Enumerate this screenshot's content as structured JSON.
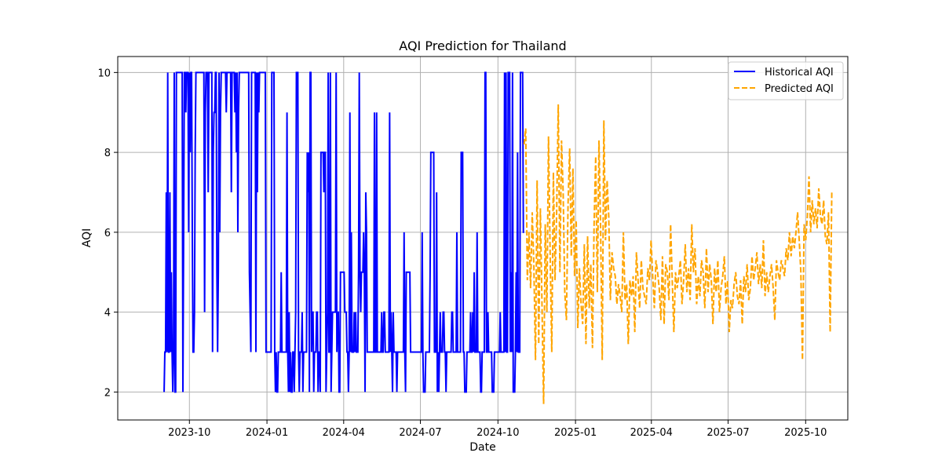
{
  "chart_data": {
    "type": "line",
    "title": "AQI Prediction for Thailand",
    "xlabel": "Date",
    "ylabel": "AQI",
    "xlim": [
      "2023-07-08",
      "2025-11-20"
    ],
    "ylim": [
      1.3,
      10.4
    ],
    "grid": true,
    "legend_position": "top-right",
    "x_ticks": [
      "2023-10-01",
      "2024-01-01",
      "2024-04-01",
      "2024-07-01",
      "2024-10-01",
      "2025-01-01",
      "2025-04-01",
      "2025-07-01",
      "2025-10-01"
    ],
    "x_tick_labels": [
      "2023-10",
      "2024-01",
      "2024-04",
      "2024-07",
      "2024-10",
      "2025-01",
      "2025-04",
      "2025-07",
      "2025-10"
    ],
    "y_ticks": [
      2,
      4,
      6,
      8,
      10
    ],
    "y_tick_labels": [
      "2",
      "4",
      "6",
      "8",
      "10"
    ],
    "series": [
      {
        "name": "Historical AQI",
        "color": "#0000ff",
        "style": "solid",
        "start": "2023-09-01",
        "end": "2024-11-01",
        "values": [
          2,
          3,
          3,
          7,
          3,
          10,
          3,
          3,
          7,
          3,
          5,
          3,
          2,
          3,
          10,
          2,
          2,
          10,
          10,
          10,
          10,
          10,
          10,
          10,
          10,
          10,
          2,
          6,
          10,
          10,
          9,
          10,
          10,
          10,
          6,
          10,
          8,
          10,
          10,
          6,
          3,
          3,
          4,
          8,
          10,
          10,
          10,
          10,
          10,
          10,
          10,
          10,
          10,
          10,
          10,
          10,
          4,
          9,
          10,
          10,
          10,
          7,
          10,
          10,
          10,
          10,
          10,
          3,
          8,
          9,
          9,
          10,
          10,
          5,
          3,
          5,
          10,
          6,
          9,
          10,
          10,
          10,
          10,
          10,
          10,
          10,
          9,
          10,
          10,
          10,
          10,
          10,
          10,
          7,
          10,
          10,
          10,
          10,
          9,
          10,
          8,
          10,
          6,
          9,
          10,
          10,
          10,
          10,
          10,
          10,
          10,
          10,
          10,
          10,
          10,
          10,
          10,
          10,
          5,
          4,
          3,
          10,
          10,
          10,
          10,
          10,
          10,
          3,
          10,
          7,
          10,
          9,
          10,
          10,
          10,
          10,
          10,
          10,
          10,
          10,
          10,
          3,
          3,
          3,
          3,
          3,
          3,
          3,
          3,
          10,
          10,
          10,
          10,
          3,
          2,
          3,
          2,
          2,
          3,
          3,
          3,
          3,
          5,
          3,
          3,
          3,
          3,
          3,
          3,
          3,
          9,
          3,
          2,
          4,
          2,
          3,
          2,
          2,
          3,
          3,
          2,
          3,
          4,
          10,
          10,
          10,
          3,
          2,
          3,
          3,
          3,
          4,
          2,
          3,
          3,
          3,
          3,
          3,
          8,
          7,
          8,
          2,
          10,
          10,
          3,
          4,
          4,
          2,
          3,
          3,
          3,
          4,
          4,
          2,
          3,
          3,
          2,
          8,
          8,
          8,
          8,
          7,
          8,
          8,
          2,
          3,
          4,
          10,
          3,
          3,
          10,
          2,
          3,
          4,
          4,
          4,
          4,
          4,
          10,
          3,
          4,
          4,
          2,
          2,
          5,
          5,
          5,
          5,
          5,
          5,
          4,
          4,
          4,
          3,
          3,
          2,
          3,
          9,
          3,
          6,
          3,
          3,
          3,
          4,
          3,
          4,
          3,
          3,
          3,
          5,
          10,
          5,
          4,
          5,
          5,
          5,
          6,
          5,
          2,
          7,
          6,
          3,
          3,
          3,
          3,
          3,
          3,
          3,
          3,
          3,
          3,
          9,
          3,
          3,
          9,
          3,
          3,
          3,
          3,
          3,
          3,
          4,
          3,
          3,
          4,
          4,
          3,
          3,
          3,
          3,
          3,
          3,
          9,
          3,
          4,
          3,
          2,
          4,
          3,
          3,
          3,
          3,
          2,
          3,
          3,
          3,
          3,
          3,
          3,
          3,
          3,
          3,
          6,
          3,
          2,
          5,
          5,
          5,
          5,
          5,
          5,
          3,
          3,
          3,
          3,
          3,
          3,
          3,
          3,
          3,
          3,
          3,
          3,
          3,
          3,
          3,
          3,
          6,
          3,
          2,
          2,
          2,
          3,
          3,
          3,
          3,
          3,
          3,
          5,
          8,
          8,
          8,
          8,
          8,
          3,
          3,
          3,
          7,
          2,
          3,
          2,
          3,
          4,
          3,
          3,
          3,
          4,
          4,
          3,
          3,
          2,
          3,
          3,
          3,
          3,
          3,
          3,
          3,
          4,
          4,
          3,
          3,
          3,
          3,
          3,
          6,
          3,
          3,
          3,
          3,
          3,
          8,
          8,
          8,
          3,
          3,
          2,
          2,
          2,
          3,
          3,
          3,
          3,
          3,
          4,
          3,
          3,
          4,
          3,
          5,
          3,
          3,
          3,
          6,
          3,
          3,
          3,
          3,
          2,
          2,
          3,
          3,
          3,
          3,
          10,
          10,
          3,
          3,
          4,
          3,
          3,
          3,
          3,
          3,
          2,
          2,
          2,
          3,
          3,
          3,
          3,
          3,
          3,
          3,
          3,
          4,
          3,
          3,
          3,
          3,
          3,
          10,
          3,
          10,
          3,
          3,
          10,
          10,
          10,
          3,
          5,
          3,
          10,
          2,
          2,
          2,
          3,
          5,
          3,
          8,
          3,
          3,
          3,
          10,
          10,
          10,
          10,
          6,
          6
        ]
      },
      {
        "name": "Predicted AQI",
        "color": "#ffa500",
        "style": "dashed",
        "start": "2024-11-01",
        "end": "2025-11-01",
        "values": [
          8.2,
          8.6,
          4.8,
          6.0,
          4.6,
          6.5,
          5.2,
          2.8,
          7.3,
          3.2,
          6.6,
          4.2,
          1.7,
          6.2,
          4.0,
          8.4,
          5.5,
          3.0,
          7.5,
          4.8,
          6.5,
          9.2,
          5.0,
          8.3,
          7.0,
          4.5,
          3.8,
          6.7,
          8.1,
          5.4,
          7.6,
          4.9,
          6.3,
          3.6,
          5.1,
          4.2,
          3.7,
          5.7,
          3.2,
          5.9,
          4.1,
          5.2,
          3.1,
          6.2,
          7.9,
          4.5,
          8.3,
          6.1,
          2.8,
          8.8,
          5.8,
          7.3,
          6.4,
          4.3,
          5.5,
          5.1,
          4.9,
          4.2,
          4.7,
          4.4,
          4.0,
          6.0,
          4.3,
          4.7,
          3.2,
          4.8,
          4.4,
          4.9,
          3.5,
          5.5,
          4.8,
          4.1,
          5.3,
          4.6,
          4.4,
          4.2,
          5.1,
          4.8,
          5.8,
          4.9,
          4.1,
          5.3,
          5.0,
          4.6,
          3.8,
          5.4,
          3.7,
          5.2,
          5.0,
          4.3,
          6.2,
          4.8,
          3.5,
          5.0,
          4.6,
          4.9,
          5.3,
          4.2,
          4.8,
          5.7,
          4.5,
          5.1,
          4.3,
          6.2,
          5.0,
          5.6,
          4.2,
          4.9,
          4.4,
          5.3,
          5.0,
          4.1,
          5.6,
          4.5,
          5.2,
          4.8,
          3.7,
          5.1,
          4.5,
          5.3,
          4.0,
          4.6,
          4.9,
          5.4,
          4.2,
          4.8,
          3.5,
          4.3,
          4.1,
          4.7,
          5.0,
          4.4,
          4.2,
          4.8,
          3.7,
          4.9,
          4.5,
          5.2,
          4.3,
          4.6,
          5.4,
          4.8,
          5.1,
          5.5,
          4.7,
          5.2,
          4.6,
          5.8,
          4.4,
          5.0,
          4.5,
          4.9,
          5.2,
          4.6,
          3.8,
          5.3,
          5.0,
          4.8,
          5.3,
          5.1,
          4.9,
          5.6,
          5.3,
          6.0,
          5.4,
          5.9,
          5.6,
          6.0,
          6.5,
          5.8,
          5.0,
          2.8,
          6.2,
          5.8,
          6.4,
          7.4,
          6.0,
          6.8,
          6.2,
          6.6,
          6.1,
          7.1,
          6.4,
          6.2,
          6.8,
          5.9,
          5.7,
          6.5,
          3.5,
          7.0
        ]
      }
    ]
  }
}
